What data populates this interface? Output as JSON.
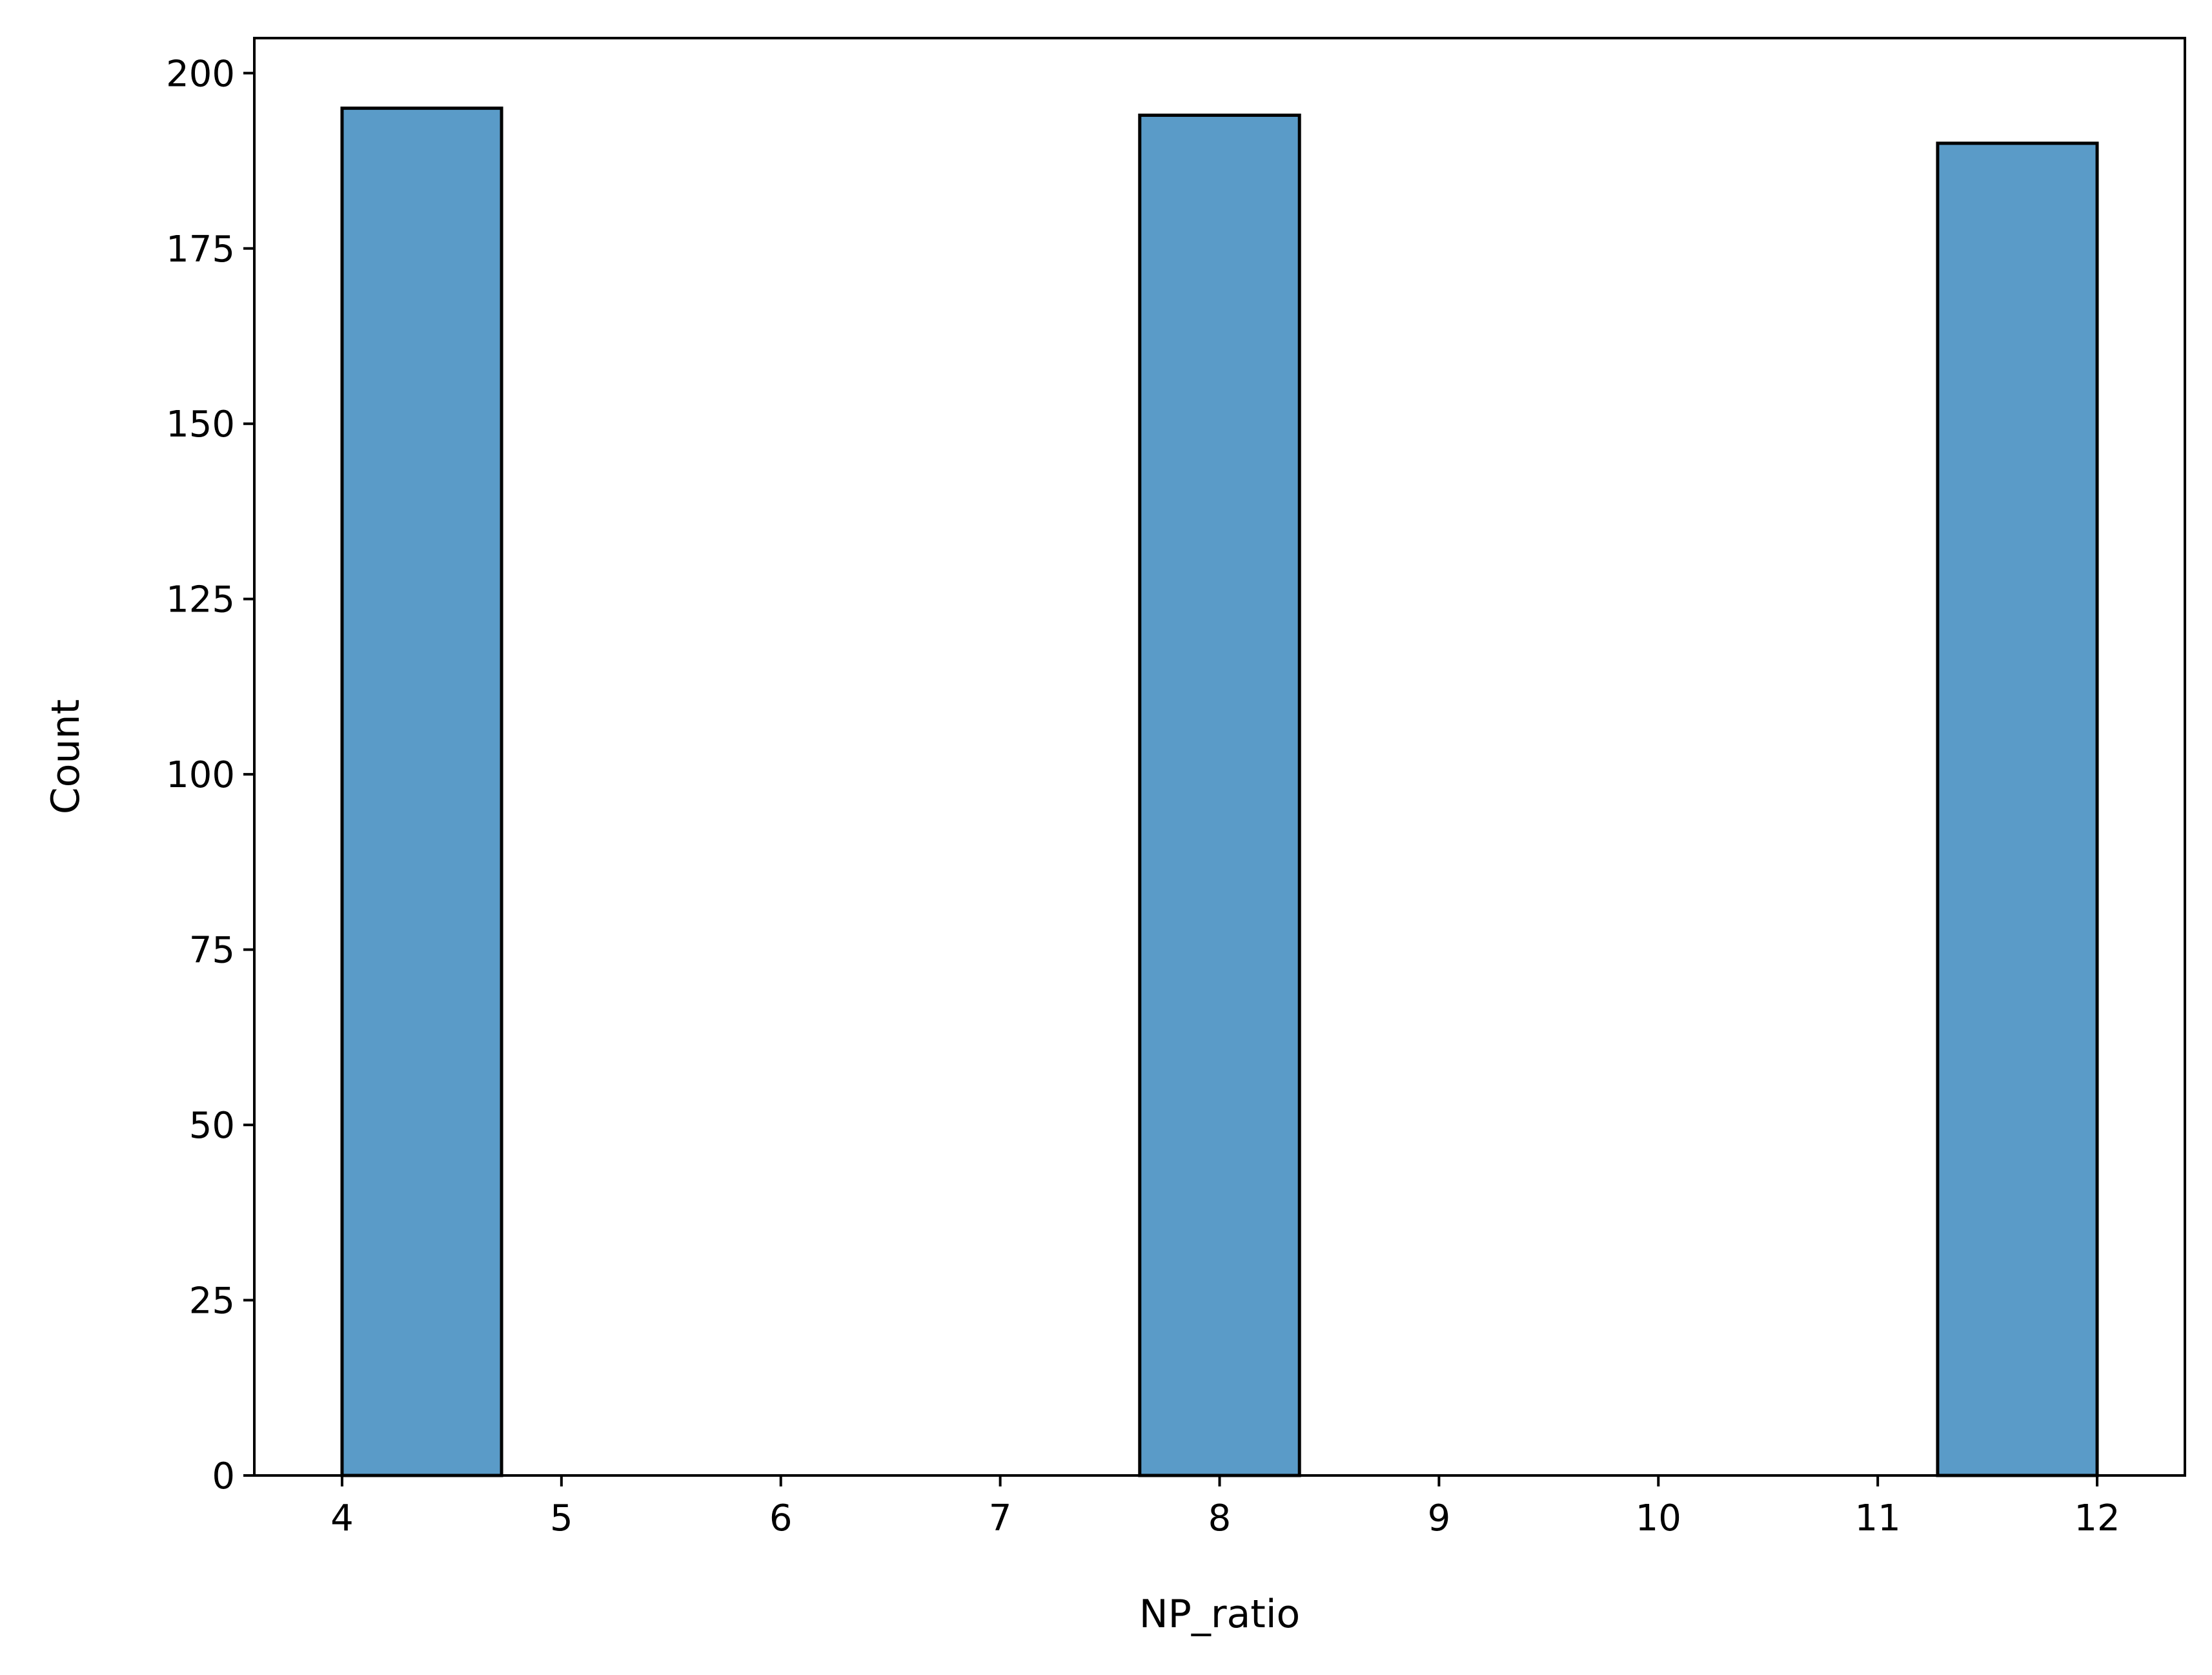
{
  "chart_data": {
    "type": "bar",
    "xlabel": "NP_ratio",
    "ylabel": "Count",
    "xlim": [
      3.6,
      12.4
    ],
    "ylim": [
      0,
      205
    ],
    "xticks": [
      4,
      5,
      6,
      7,
      8,
      9,
      10,
      11,
      12
    ],
    "yticks": [
      0,
      25,
      50,
      75,
      100,
      125,
      150,
      175,
      200
    ],
    "bins": [
      {
        "start": 4.0,
        "end": 4.727,
        "value": 195
      },
      {
        "start": 7.636,
        "end": 8.364,
        "value": 194
      },
      {
        "start": 11.273,
        "end": 12.0,
        "value": 190
      }
    ],
    "bar_color": "#5a9bc8",
    "edge_color": "#000000",
    "grid": false
  }
}
